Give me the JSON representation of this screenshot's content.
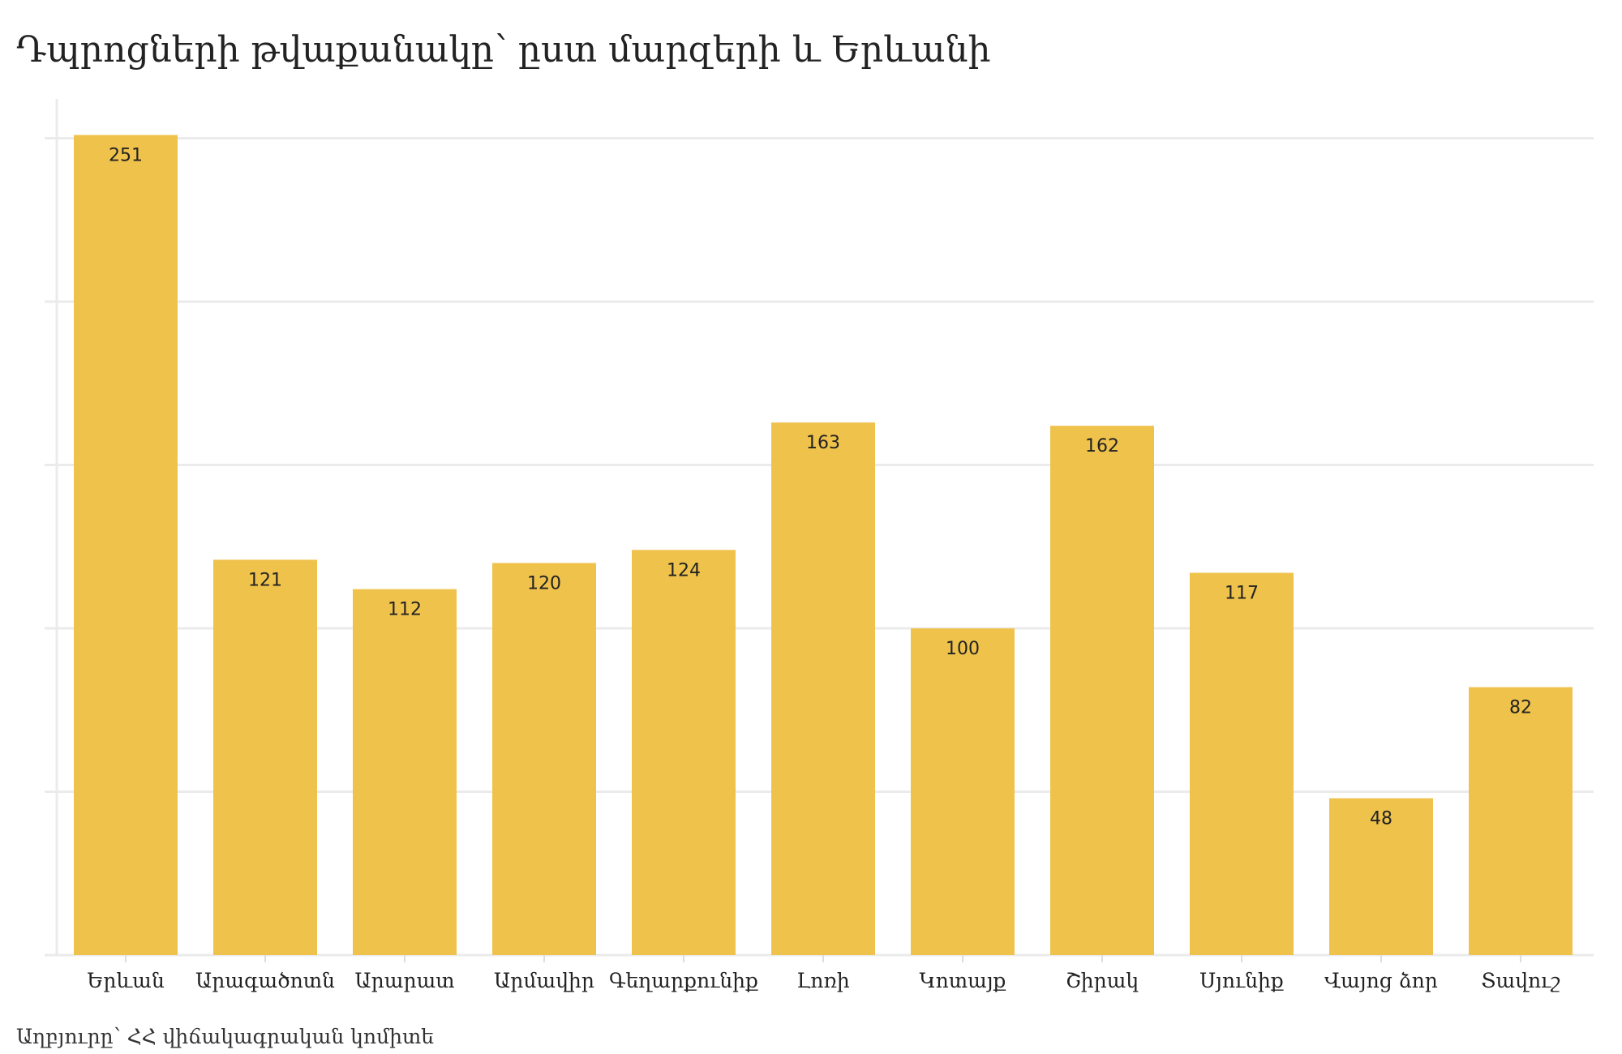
{
  "chart_data": {
    "type": "bar",
    "title": "Դպրոցների թվաքանակը՝ ըստ մարզերի և Երևանի",
    "source": "Աղբյուրը՝ ՀՀ վիճակագրական կոմիտե",
    "xlabel": "",
    "ylabel": "",
    "categories": [
      "Երևան",
      "Արագածոտն",
      "Արարատ",
      "Արմավիր",
      "Գեղարքունիք",
      "Լոռի",
      "Կոտայք",
      "Շիրակ",
      "Սյունիք",
      "Վայոց ձոր",
      "Տավուշ"
    ],
    "values": [
      251,
      121,
      112,
      120,
      124,
      163,
      100,
      162,
      117,
      48,
      82
    ],
    "data_labels": [
      "251",
      "121",
      "112",
      "120",
      "124",
      "163",
      "100",
      "162",
      "117",
      "48",
      "82"
    ],
    "ylim": [
      0,
      251
    ],
    "gridlines": [
      0,
      50,
      100,
      150,
      200,
      250
    ],
    "grid": true,
    "y_tick_labels_shown": false,
    "legend": "none",
    "bar_color": "#EFC24C"
  }
}
